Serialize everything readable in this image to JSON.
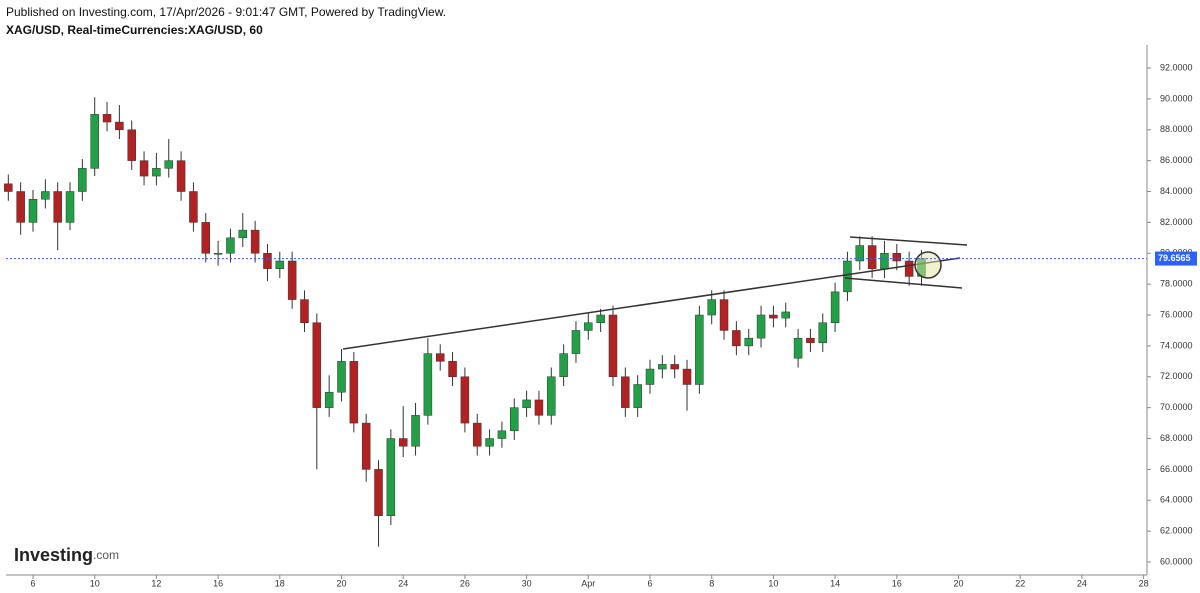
{
  "header": {
    "published": "Published on Investing.com, 17/Apr/2026 - 9:01:47 GMT, Powered by TradingView.",
    "symbol": "XAG/USD, Real-timeCurrencies:XAG/USD, 60"
  },
  "logo": {
    "brand": "Investing",
    "suffix": ".com"
  },
  "chart_data": {
    "type": "candlestick",
    "categories": [
      null,
      null,
      "6",
      null,
      null,
      null,
      null,
      "10",
      null,
      null,
      null,
      null,
      "12",
      null,
      null,
      null,
      null,
      "16",
      null,
      null,
      null,
      null,
      "18",
      null,
      null,
      null,
      null,
      "20",
      null,
      null,
      null,
      null,
      "24",
      null,
      null,
      null,
      null,
      "26",
      null,
      null,
      null,
      null,
      "30",
      null,
      null,
      null,
      null,
      "Apr",
      null,
      null,
      null,
      null,
      "6",
      null,
      null,
      null,
      null,
      "8",
      null,
      null,
      null,
      null,
      "10",
      null,
      null,
      null,
      null,
      "14",
      null,
      null,
      null,
      null,
      "16",
      null,
      null,
      null,
      null,
      "20",
      null,
      null,
      null,
      null,
      "22",
      null,
      null,
      null,
      null,
      "24",
      null,
      null,
      null,
      null,
      "28"
    ],
    "open": [
      84.5,
      84,
      82,
      83.5,
      84,
      82,
      84,
      85.5,
      89,
      88.5,
      88,
      86,
      85,
      85.5,
      86,
      84,
      82,
      80,
      80,
      81,
      81.5,
      80,
      79,
      79.5,
      77,
      75.5,
      70,
      71,
      73,
      69,
      66,
      63,
      68,
      67.5,
      69.5,
      73.5,
      73,
      72,
      69,
      67.5,
      68,
      68.5,
      70,
      70.5,
      69.5,
      72,
      73.5,
      75,
      75.5,
      76,
      72,
      70,
      71.5,
      72.5,
      72.8,
      72.5,
      71.5,
      76,
      77,
      75,
      74,
      74.5,
      76,
      75.8,
      73.2,
      74.5,
      74.2,
      75.5,
      77.5,
      79.5,
      80.5,
      79,
      80,
      79.5,
      78.5,
      null,
      null,
      null,
      null,
      null,
      null,
      null,
      null,
      null,
      null,
      null,
      null,
      null,
      null,
      null,
      null,
      null,
      null
    ],
    "high": [
      85.1,
      84.6,
      84.1,
      84.8,
      84.6,
      84.6,
      86.1,
      90.1,
      89.8,
      89.6,
      88.6,
      86.6,
      86.5,
      87.4,
      86.6,
      84.6,
      82.6,
      80.8,
      81.6,
      82.6,
      82.1,
      80.6,
      80.1,
      80.1,
      77.6,
      76.1,
      72.1,
      73.8,
      73.6,
      69.6,
      66.6,
      68.6,
      70.1,
      70.3,
      74.5,
      74.1,
      73.6,
      72.6,
      69.6,
      68.6,
      69.1,
      70.6,
      71.1,
      71.1,
      72.6,
      74.1,
      75.6,
      76.1,
      76.4,
      76.6,
      72.6,
      72.1,
      73.1,
      73.4,
      73.4,
      73.1,
      76.6,
      77.6,
      77.6,
      75.6,
      75.1,
      76.6,
      76.6,
      76.8,
      75.1,
      75.1,
      76.1,
      78.1,
      80.1,
      81.1,
      81.1,
      80.8,
      80.6,
      80.1,
      80.2,
      null,
      null,
      null,
      null,
      null,
      null,
      null,
      null,
      null,
      null,
      null,
      null,
      null,
      null,
      null,
      null,
      null,
      null
    ],
    "low": [
      83.4,
      81.2,
      81.4,
      82.9,
      80.2,
      81.5,
      83.4,
      85,
      87.9,
      87.4,
      85.4,
      84.4,
      84.4,
      84.9,
      83.4,
      81.4,
      79.4,
      79.2,
      79.4,
      80.4,
      79.4,
      78.2,
      78.4,
      76.4,
      74.9,
      66,
      69.4,
      70.4,
      68.4,
      65.2,
      61,
      62.4,
      66.8,
      66.9,
      68.9,
      72.4,
      71.4,
      68.4,
      66.9,
      66.9,
      67.4,
      67.9,
      69.4,
      68.9,
      68.9,
      71.4,
      72.9,
      74.4,
      74.9,
      71.4,
      69.4,
      69.4,
      70.9,
      71.9,
      71.9,
      69.8,
      70.9,
      75.4,
      74.4,
      73.4,
      73.4,
      73.9,
      75.2,
      75.2,
      72.6,
      73.6,
      73.6,
      74.9,
      76.9,
      78.9,
      78.4,
      78.4,
      78.9,
      77.9,
      77.9,
      null,
      null,
      null,
      null,
      null,
      null,
      null,
      null,
      null,
      null,
      null,
      null,
      null,
      null,
      null,
      null,
      null,
      null
    ],
    "close": [
      84,
      82,
      83.5,
      84,
      82,
      84,
      85.5,
      89,
      88.5,
      88,
      86,
      85,
      85.5,
      86,
      84,
      82,
      80,
      80,
      81,
      81.5,
      80,
      79,
      79.5,
      77,
      75.5,
      70,
      71,
      73,
      69,
      66,
      63,
      68,
      67.5,
      69.5,
      73.5,
      73,
      72,
      69,
      67.5,
      68,
      68.5,
      70,
      70.5,
      69.5,
      72,
      73.5,
      75,
      75.5,
      76,
      72,
      70,
      71.5,
      72.5,
      72.8,
      72.5,
      71.5,
      76,
      77,
      75,
      74,
      74.5,
      76,
      75.8,
      76.2,
      74.5,
      74.2,
      75.5,
      77.5,
      79.5,
      80.5,
      79,
      80,
      79.5,
      78.5,
      79.66,
      null,
      null,
      null,
      null,
      null,
      null,
      null,
      null,
      null,
      null,
      null,
      null,
      null,
      null,
      null,
      null,
      null,
      null
    ],
    "up_color": "#22a046",
    "down_color": "#b22222",
    "last_price": 79.6565,
    "last_price_color": "#2962ff",
    "ylim": [
      59.16,
      93.49
    ],
    "yticks": [
      {
        "value": 60,
        "label": "60.0000"
      },
      {
        "value": 62,
        "label": "62.0000"
      },
      {
        "value": 64,
        "label": "64.0000"
      },
      {
        "value": 66,
        "label": "66.0000"
      },
      {
        "value": 68,
        "label": "68.0000"
      },
      {
        "value": 70,
        "label": "70.0000"
      },
      {
        "value": 72,
        "label": "72.0000"
      },
      {
        "value": 74,
        "label": "74.0000"
      },
      {
        "value": 76,
        "label": "76.0000"
      },
      {
        "value": 78,
        "label": "78.0000"
      },
      {
        "value": 80,
        "label": "80.0000"
      },
      {
        "value": 82,
        "label": "82.0000"
      },
      {
        "value": 84,
        "label": "84.0000"
      },
      {
        "value": 86,
        "label": "86.0000"
      },
      {
        "value": 88,
        "label": "88.0000"
      },
      {
        "value": 90,
        "label": "90.0000"
      },
      {
        "value": 92,
        "label": "92.0000"
      }
    ]
  }
}
